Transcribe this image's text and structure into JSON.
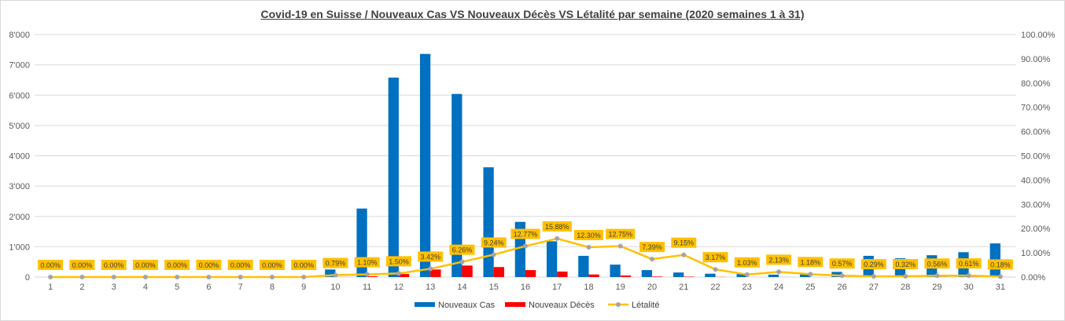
{
  "chart_data": {
    "type": "bar",
    "title": "Covid-19 en Suisse / Nouveaux Cas VS Nouveaux Décès VS Létalité par semaine (2020 semaines 1 à 31)",
    "categories": [
      "1",
      "2",
      "3",
      "4",
      "5",
      "6",
      "7",
      "8",
      "9",
      "10",
      "11",
      "12",
      "13",
      "14",
      "15",
      "16",
      "17",
      "18",
      "19",
      "20",
      "21",
      "22",
      "23",
      "24",
      "25",
      "26",
      "27",
      "28",
      "29",
      "30",
      "31"
    ],
    "y_left": {
      "lim": [
        0,
        8000
      ],
      "ticks": [
        "0",
        "1'000",
        "2'000",
        "3'000",
        "4'000",
        "5'000",
        "6'000",
        "7'000",
        "8'000"
      ]
    },
    "y_right": {
      "lim": [
        0,
        100
      ],
      "ticks": [
        "0.00%",
        "10.00%",
        "20.00%",
        "30.00%",
        "40.00%",
        "50.00%",
        "60.00%",
        "70.00%",
        "80.00%",
        "90.00%",
        "100.00%"
      ]
    },
    "grid": true,
    "legend_position": "bottom",
    "series": [
      {
        "name": "Nouveaux Cas",
        "kind": "bar",
        "axis": "left",
        "color": "#0070C0",
        "values": [
          0,
          0,
          0,
          0,
          0,
          0,
          0,
          0,
          1,
          250,
          2260,
          6580,
          7360,
          6040,
          3620,
          1820,
          1180,
          700,
          410,
          230,
          150,
          110,
          100,
          80,
          110,
          170,
          700,
          620,
          720,
          820,
          1110
        ]
      },
      {
        "name": "Nouveaux Décès",
        "kind": "bar",
        "axis": "left",
        "color": "#FF0000",
        "values": [
          0,
          0,
          0,
          0,
          0,
          0,
          0,
          0,
          0,
          2,
          25,
          100,
          250,
          380,
          330,
          230,
          180,
          85,
          50,
          17,
          14,
          4,
          1,
          2,
          1,
          1,
          2,
          2,
          4,
          5,
          2
        ]
      },
      {
        "name": "Létalité",
        "kind": "line",
        "axis": "right",
        "color": "#FFC000",
        "marker_color": "#A5A5A5",
        "values": [
          0,
          0,
          0,
          0,
          0,
          0,
          0,
          0,
          0,
          0.79,
          1.1,
          1.5,
          3.42,
          6.26,
          9.24,
          12.77,
          15.88,
          12.3,
          12.75,
          7.39,
          9.15,
          3.17,
          1.03,
          2.13,
          1.18,
          0.57,
          0.29,
          0.32,
          0.56,
          0.61,
          0.18
        ],
        "labels": [
          "0.00%",
          "0.00%",
          "0.00%",
          "0.00%",
          "0.00%",
          "0.00%",
          "0.00%",
          "0.00%",
          "0.00%",
          "0.79%",
          "1.10%",
          "1.50%",
          "3.42%",
          "6.26%",
          "9.24%",
          "12.77%",
          "15.88%",
          "12.30%",
          "12.75%",
          "7.39%",
          "9.15%",
          "3.17%",
          "1.03%",
          "2.13%",
          "1.18%",
          "0.57%",
          "0.29%",
          "0.32%",
          "0.56%",
          "0.61%",
          "0.18%"
        ]
      }
    ]
  },
  "colors": {
    "grid": "#d9d9d9",
    "label_box": "#FFC000",
    "axis_text": "#595959"
  }
}
